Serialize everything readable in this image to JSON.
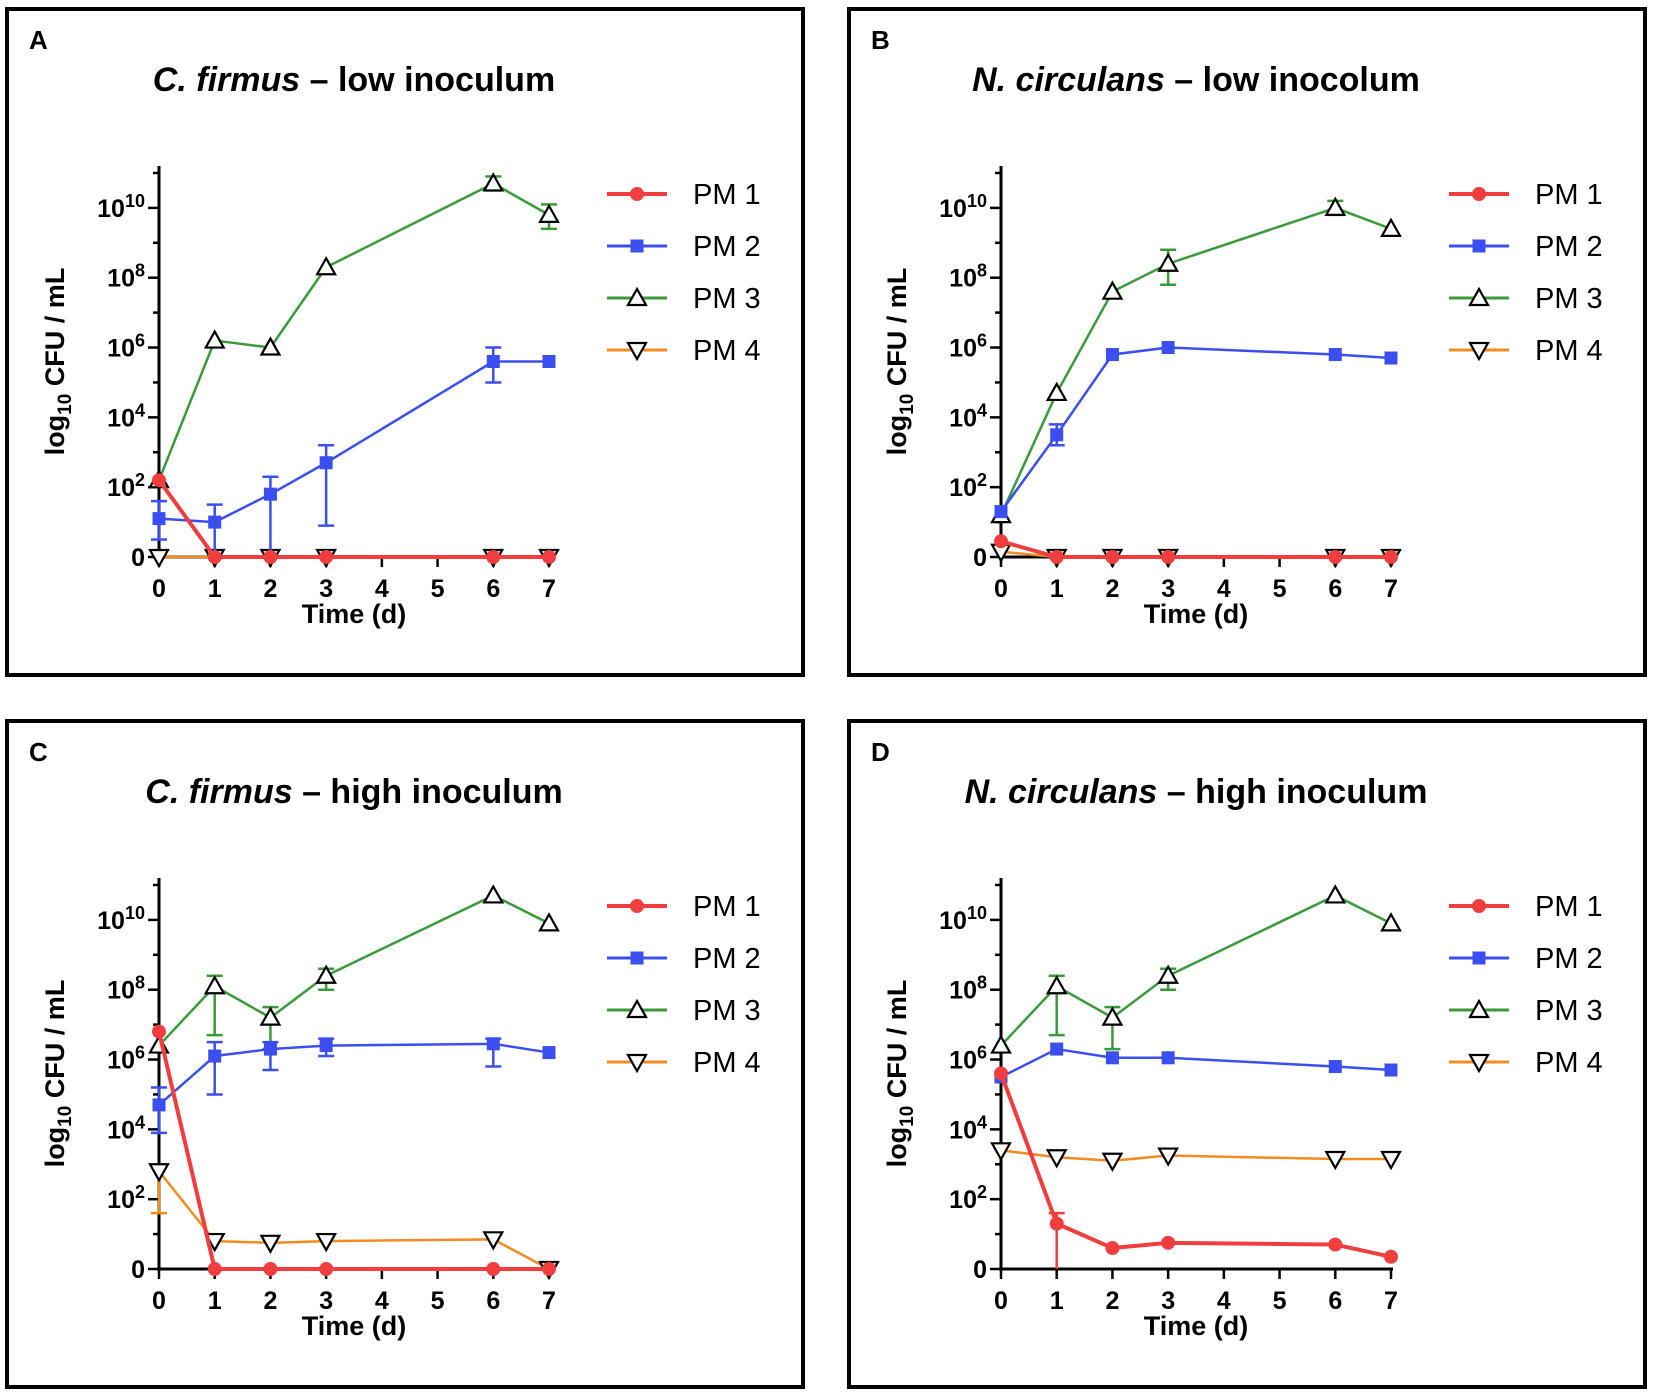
{
  "figure": {
    "series_names": [
      "PM 1",
      "PM 2",
      "PM 3",
      "PM 4"
    ],
    "colors": {
      "PM 1": "#f03e3e",
      "PM 2": "#3b4ff0",
      "PM 3": "#3a9a3a",
      "PM 4": "#f28c1e",
      "marker_outline": "#000000"
    }
  },
  "chart_data": [
    {
      "panel_label": "A",
      "title_italic": "C. firmus",
      "title_rest": " – low inoculum",
      "type": "line",
      "xlabel": "Time (d)",
      "ylabel": "log10 CFU / mL",
      "x_ticks": [
        "0",
        "1",
        "2",
        "3",
        "4",
        "5",
        "6",
        "7"
      ],
      "y_ticks": [
        "0",
        "10^2",
        "10^4",
        "10^6",
        "10^8",
        "10^10"
      ],
      "xlim": [
        0,
        7
      ],
      "ylim_log10": [
        0,
        11.2
      ],
      "x": [
        0,
        1,
        2,
        3,
        6,
        7
      ],
      "series": [
        {
          "name": "PM 1",
          "values": [
            2.2,
            0,
            0,
            0,
            0,
            0
          ],
          "errors": [
            null,
            null,
            null,
            null,
            null,
            null
          ]
        },
        {
          "name": "PM 2",
          "values": [
            1.1,
            1.0,
            1.8,
            2.7,
            5.6,
            5.6
          ],
          "errors": [
            [
              0.5,
              1.6
            ],
            [
              0,
              1.5
            ],
            [
              0,
              2.3
            ],
            [
              0.9,
              3.2
            ],
            [
              5.0,
              6.0
            ],
            null
          ]
        },
        {
          "name": "PM 3",
          "values": [
            2.2,
            6.2,
            6.0,
            8.3,
            10.7,
            9.8
          ],
          "errors": [
            null,
            null,
            null,
            null,
            [
              10.5,
              10.9
            ],
            [
              9.4,
              10.1
            ]
          ]
        },
        {
          "name": "PM 4",
          "values": [
            0,
            0,
            0,
            0,
            0,
            0
          ],
          "errors": [
            null,
            null,
            null,
            null,
            null,
            null
          ]
        }
      ]
    },
    {
      "panel_label": "B",
      "title_italic": "N. circulans",
      "title_rest": " – low inocolum",
      "type": "line",
      "xlabel": "Time (d)",
      "ylabel": "log10 CFU / mL",
      "x_ticks": [
        "0",
        "1",
        "2",
        "3",
        "4",
        "5",
        "6",
        "7"
      ],
      "y_ticks": [
        "0",
        "10^2",
        "10^4",
        "10^6",
        "10^8",
        "10^10"
      ],
      "xlim": [
        0,
        7
      ],
      "ylim_log10": [
        0,
        11.2
      ],
      "x": [
        0,
        1,
        2,
        3,
        6,
        7
      ],
      "series": [
        {
          "name": "PM 1",
          "values": [
            0.45,
            0,
            0,
            0,
            0,
            0
          ],
          "errors": [
            null,
            null,
            null,
            null,
            null,
            null
          ]
        },
        {
          "name": "PM 2",
          "values": [
            1.3,
            3.5,
            5.8,
            6.0,
            5.8,
            5.7
          ],
          "errors": [
            null,
            [
              3.2,
              3.8
            ],
            null,
            null,
            null,
            null
          ]
        },
        {
          "name": "PM 3",
          "values": [
            1.2,
            4.7,
            7.6,
            8.4,
            10.0,
            9.4
          ],
          "errors": [
            null,
            null,
            null,
            [
              7.8,
              8.8
            ],
            [
              9.8,
              10.2
            ],
            null
          ]
        },
        {
          "name": "PM 4",
          "values": [
            0.15,
            0,
            0,
            0,
            0,
            0
          ],
          "errors": [
            null,
            null,
            null,
            null,
            null,
            null
          ]
        }
      ]
    },
    {
      "panel_label": "C",
      "title_italic": "C. firmus",
      "title_rest": " – high inoculum",
      "type": "line",
      "xlabel": "Time (d)",
      "ylabel": "log10 CFU / mL",
      "x_ticks": [
        "0",
        "1",
        "2",
        "3",
        "4",
        "5",
        "6",
        "7"
      ],
      "y_ticks": [
        "0",
        "10^2",
        "10^4",
        "10^6",
        "10^8",
        "10^10"
      ],
      "xlim": [
        0,
        7
      ],
      "ylim_log10": [
        0,
        11.2
      ],
      "x": [
        0,
        1,
        2,
        3,
        6,
        7
      ],
      "series": [
        {
          "name": "PM 1",
          "values": [
            6.8,
            0,
            0,
            0,
            0,
            0
          ],
          "errors": [
            null,
            null,
            null,
            null,
            null,
            null
          ]
        },
        {
          "name": "PM 2",
          "values": [
            4.7,
            6.1,
            6.3,
            6.4,
            6.45,
            6.2
          ],
          "errors": [
            [
              3.9,
              5.2
            ],
            [
              5.0,
              6.5
            ],
            [
              5.7,
              6.5
            ],
            [
              6.1,
              6.6
            ],
            [
              5.8,
              6.6
            ],
            null
          ]
        },
        {
          "name": "PM 3",
          "values": [
            6.4,
            8.1,
            7.2,
            8.4,
            10.7,
            9.9
          ],
          "errors": [
            null,
            [
              6.7,
              8.4
            ],
            [
              6.3,
              7.5
            ],
            [
              8.0,
              8.6
            ],
            null,
            null
          ]
        },
        {
          "name": "PM 4",
          "values": [
            2.8,
            0.8,
            0.75,
            0.8,
            0.85,
            0
          ],
          "errors": [
            [
              1.6,
              3.0
            ],
            null,
            null,
            null,
            null,
            null
          ]
        }
      ]
    },
    {
      "panel_label": "D",
      "title_italic": "N. circulans",
      "title_rest": " – high inoculum",
      "type": "line",
      "xlabel": "Time (d)",
      "ylabel": "log10 CFU / mL",
      "x_ticks": [
        "0",
        "1",
        "2",
        "3",
        "4",
        "5",
        "6",
        "7"
      ],
      "y_ticks": [
        "0",
        "10^2",
        "10^4",
        "10^6",
        "10^8",
        "10^10"
      ],
      "xlim": [
        0,
        7
      ],
      "ylim_log10": [
        0,
        11.2
      ],
      "x": [
        0,
        1,
        2,
        3,
        6,
        7
      ],
      "series": [
        {
          "name": "PM 1",
          "values": [
            5.6,
            1.3,
            0.6,
            0.75,
            0.7,
            0.35
          ],
          "errors": [
            null,
            [
              0,
              1.6
            ],
            null,
            null,
            null,
            null
          ]
        },
        {
          "name": "PM 2",
          "values": [
            5.5,
            6.3,
            6.05,
            6.05,
            5.8,
            5.7
          ],
          "errors": [
            null,
            null,
            null,
            null,
            null,
            null
          ]
        },
        {
          "name": "PM 3",
          "values": [
            6.4,
            8.1,
            7.2,
            8.4,
            10.7,
            9.9
          ],
          "errors": [
            null,
            [
              6.7,
              8.4
            ],
            [
              6.3,
              7.5
            ],
            [
              8.0,
              8.6
            ],
            null,
            null
          ]
        },
        {
          "name": "PM 4",
          "values": [
            3.4,
            3.2,
            3.1,
            3.25,
            3.15,
            3.15
          ],
          "errors": [
            null,
            null,
            null,
            null,
            null,
            null
          ]
        }
      ]
    }
  ]
}
